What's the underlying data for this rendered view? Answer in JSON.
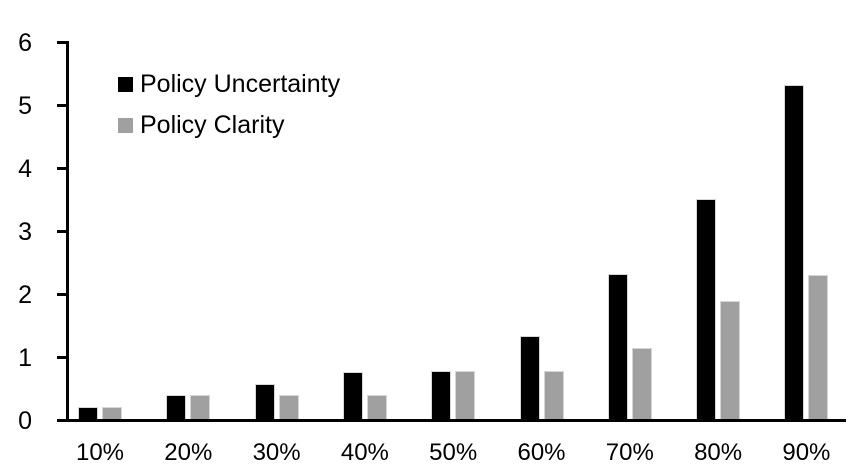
{
  "chart_data": {
    "type": "bar",
    "title": "",
    "xlabel": "",
    "ylabel": "",
    "categories": [
      "10%",
      "20%",
      "30%",
      "40%",
      "50%",
      "60%",
      "70%",
      "80%",
      "90%"
    ],
    "series": [
      {
        "name": "Policy Uncertainty",
        "color": "#000000",
        "values": [
          0.19,
          0.38,
          0.55,
          0.74,
          0.76,
          1.32,
          2.3,
          3.5,
          5.3
        ]
      },
      {
        "name": "Policy Clarity",
        "color": "#a0a0a0",
        "values": [
          0.19,
          0.38,
          0.38,
          0.38,
          0.76,
          0.76,
          1.13,
          1.88,
          2.28
        ]
      }
    ],
    "ylim": [
      0,
      6
    ],
    "yticks": [
      0,
      1,
      2,
      3,
      4,
      5,
      6
    ],
    "ytick_labels": [
      "0",
      "1",
      "2",
      "3",
      "4",
      "5",
      "6"
    ],
    "grid": false,
    "legend_position": "top-left-inside",
    "axis_color": "#000000",
    "background_color": "#ffffff"
  }
}
